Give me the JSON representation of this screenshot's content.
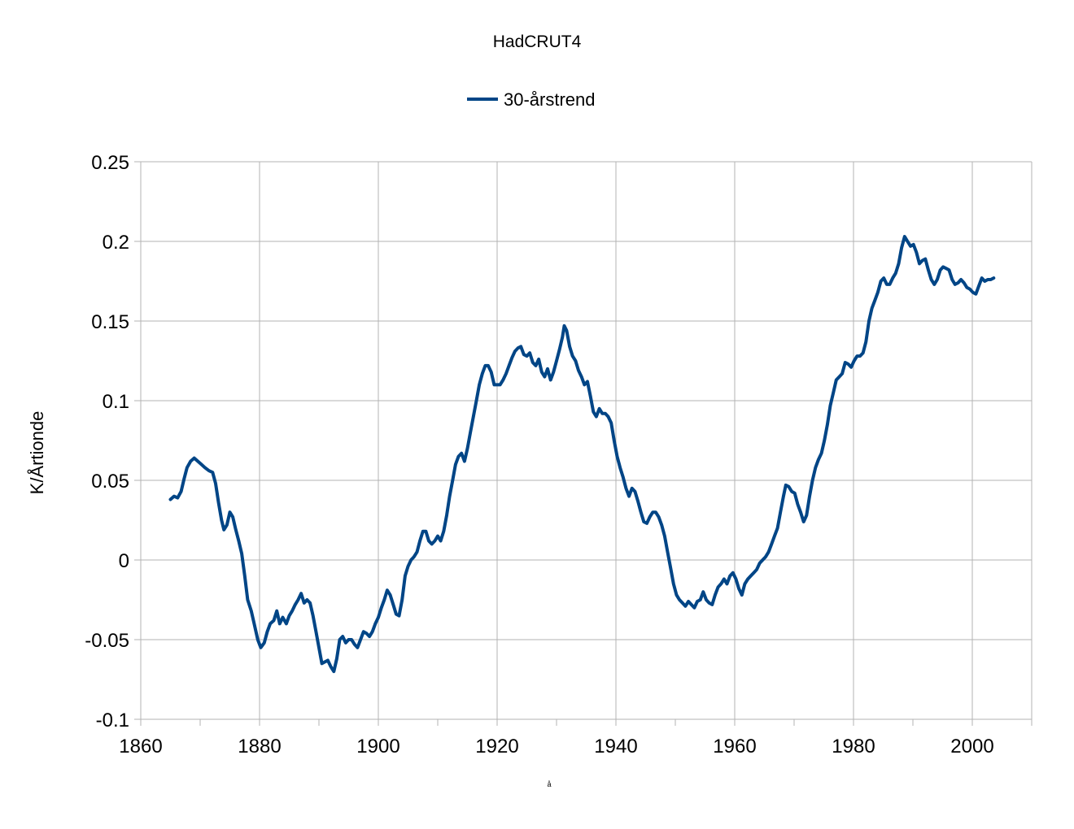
{
  "chart_data": {
    "type": "line",
    "title": "HadCRUT4",
    "xlabel": "å",
    "ylabel": "K/Årtionde",
    "xlim": [
      1860,
      2010
    ],
    "ylim": [
      -0.1,
      0.25
    ],
    "x_ticks": [
      1860,
      1880,
      1900,
      1920,
      1940,
      1960,
      1980,
      2000
    ],
    "y_ticks": [
      -0.1,
      -0.05,
      0,
      0.05,
      0.1,
      0.15,
      0.2,
      0.25
    ],
    "y_tick_labels": [
      "-0.1",
      "-0.05",
      "0",
      "0.05",
      "0.1",
      "0.15",
      "0.2",
      "0.25"
    ],
    "grid": true,
    "legend_position": "top-center",
    "series": [
      {
        "name": "30-årstrend",
        "color": "#004586",
        "points": [
          [
            1865.0,
            0.038
          ],
          [
            1865.6,
            0.04
          ],
          [
            1866.2,
            0.039
          ],
          [
            1866.8,
            0.043
          ],
          [
            1867.3,
            0.051
          ],
          [
            1867.8,
            0.058
          ],
          [
            1868.4,
            0.062
          ],
          [
            1869.0,
            0.064
          ],
          [
            1869.6,
            0.062
          ],
          [
            1870.2,
            0.06
          ],
          [
            1870.8,
            0.058
          ],
          [
            1871.5,
            0.056
          ],
          [
            1872.1,
            0.055
          ],
          [
            1872.6,
            0.048
          ],
          [
            1873.1,
            0.036
          ],
          [
            1873.6,
            0.025
          ],
          [
            1874.0,
            0.019
          ],
          [
            1874.5,
            0.022
          ],
          [
            1875.0,
            0.03
          ],
          [
            1875.5,
            0.027
          ],
          [
            1876.0,
            0.019
          ],
          [
            1876.5,
            0.012
          ],
          [
            1877.0,
            0.004
          ],
          [
            1877.5,
            -0.01
          ],
          [
            1878.0,
            -0.025
          ],
          [
            1878.6,
            -0.032
          ],
          [
            1879.1,
            -0.04
          ],
          [
            1879.7,
            -0.05
          ],
          [
            1880.2,
            -0.055
          ],
          [
            1880.8,
            -0.052
          ],
          [
            1881.3,
            -0.045
          ],
          [
            1881.8,
            -0.04
          ],
          [
            1882.4,
            -0.038
          ],
          [
            1882.9,
            -0.032
          ],
          [
            1883.4,
            -0.04
          ],
          [
            1883.9,
            -0.036
          ],
          [
            1884.5,
            -0.04
          ],
          [
            1885.0,
            -0.035
          ],
          [
            1885.5,
            -0.032
          ],
          [
            1886.0,
            -0.028
          ],
          [
            1886.5,
            -0.025
          ],
          [
            1887.0,
            -0.021
          ],
          [
            1887.5,
            -0.027
          ],
          [
            1888.0,
            -0.025
          ],
          [
            1888.5,
            -0.027
          ],
          [
            1889.0,
            -0.035
          ],
          [
            1889.5,
            -0.045
          ],
          [
            1890.0,
            -0.055
          ],
          [
            1890.5,
            -0.065
          ],
          [
            1891.0,
            -0.064
          ],
          [
            1891.5,
            -0.063
          ],
          [
            1892.0,
            -0.067
          ],
          [
            1892.5,
            -0.07
          ],
          [
            1893.0,
            -0.062
          ],
          [
            1893.5,
            -0.05
          ],
          [
            1894.0,
            -0.048
          ],
          [
            1894.5,
            -0.052
          ],
          [
            1895.0,
            -0.05
          ],
          [
            1895.5,
            -0.05
          ],
          [
            1896.0,
            -0.053
          ],
          [
            1896.5,
            -0.055
          ],
          [
            1897.0,
            -0.05
          ],
          [
            1897.5,
            -0.045
          ],
          [
            1898.0,
            -0.046
          ],
          [
            1898.5,
            -0.048
          ],
          [
            1899.0,
            -0.045
          ],
          [
            1899.5,
            -0.04
          ],
          [
            1900.0,
            -0.036
          ],
          [
            1900.5,
            -0.03
          ],
          [
            1901.0,
            -0.025
          ],
          [
            1901.5,
            -0.019
          ],
          [
            1902.0,
            -0.022
          ],
          [
            1902.5,
            -0.028
          ],
          [
            1903.0,
            -0.034
          ],
          [
            1903.5,
            -0.035
          ],
          [
            1904.0,
            -0.025
          ],
          [
            1904.5,
            -0.01
          ],
          [
            1905.0,
            -0.004
          ],
          [
            1905.5,
            0.0
          ],
          [
            1906.0,
            0.002
          ],
          [
            1906.5,
            0.005
          ],
          [
            1907.0,
            0.012
          ],
          [
            1907.5,
            0.018
          ],
          [
            1908.0,
            0.018
          ],
          [
            1908.5,
            0.012
          ],
          [
            1909.0,
            0.01
          ],
          [
            1909.5,
            0.012
          ],
          [
            1910.0,
            0.015
          ],
          [
            1910.5,
            0.012
          ],
          [
            1911.0,
            0.018
          ],
          [
            1911.5,
            0.028
          ],
          [
            1912.0,
            0.04
          ],
          [
            1912.5,
            0.05
          ],
          [
            1913.0,
            0.06
          ],
          [
            1913.5,
            0.065
          ],
          [
            1914.0,
            0.067
          ],
          [
            1914.5,
            0.062
          ],
          [
            1915.0,
            0.07
          ],
          [
            1915.5,
            0.08
          ],
          [
            1916.0,
            0.09
          ],
          [
            1916.5,
            0.1
          ],
          [
            1917.0,
            0.11
          ],
          [
            1917.5,
            0.117
          ],
          [
            1918.0,
            0.122
          ],
          [
            1918.5,
            0.122
          ],
          [
            1919.0,
            0.118
          ],
          [
            1919.5,
            0.11
          ],
          [
            1920.0,
            0.11
          ],
          [
            1920.5,
            0.11
          ],
          [
            1921.0,
            0.113
          ],
          [
            1921.5,
            0.117
          ],
          [
            1922.0,
            0.122
          ],
          [
            1922.5,
            0.127
          ],
          [
            1923.0,
            0.131
          ],
          [
            1923.5,
            0.133
          ],
          [
            1924.0,
            0.134
          ],
          [
            1924.5,
            0.129
          ],
          [
            1925.0,
            0.128
          ],
          [
            1925.5,
            0.13
          ],
          [
            1926.0,
            0.124
          ],
          [
            1926.5,
            0.122
          ],
          [
            1927.0,
            0.126
          ],
          [
            1927.5,
            0.118
          ],
          [
            1928.0,
            0.115
          ],
          [
            1928.5,
            0.12
          ],
          [
            1929.0,
            0.113
          ],
          [
            1929.5,
            0.118
          ],
          [
            1930.0,
            0.125
          ],
          [
            1930.5,
            0.132
          ],
          [
            1931.0,
            0.14
          ],
          [
            1931.3,
            0.147
          ],
          [
            1931.7,
            0.144
          ],
          [
            1932.2,
            0.134
          ],
          [
            1932.7,
            0.128
          ],
          [
            1933.2,
            0.125
          ],
          [
            1933.7,
            0.119
          ],
          [
            1934.2,
            0.115
          ],
          [
            1934.7,
            0.11
          ],
          [
            1935.2,
            0.112
          ],
          [
            1935.7,
            0.103
          ],
          [
            1936.2,
            0.093
          ],
          [
            1936.7,
            0.09
          ],
          [
            1937.2,
            0.095
          ],
          [
            1937.7,
            0.092
          ],
          [
            1938.2,
            0.092
          ],
          [
            1938.7,
            0.09
          ],
          [
            1939.2,
            0.086
          ],
          [
            1939.7,
            0.075
          ],
          [
            1940.2,
            0.065
          ],
          [
            1940.7,
            0.058
          ],
          [
            1941.2,
            0.052
          ],
          [
            1941.7,
            0.045
          ],
          [
            1942.2,
            0.04
          ],
          [
            1942.7,
            0.045
          ],
          [
            1943.2,
            0.043
          ],
          [
            1943.7,
            0.037
          ],
          [
            1944.2,
            0.03
          ],
          [
            1944.7,
            0.024
          ],
          [
            1945.2,
            0.023
          ],
          [
            1945.7,
            0.027
          ],
          [
            1946.2,
            0.03
          ],
          [
            1946.7,
            0.03
          ],
          [
            1947.2,
            0.027
          ],
          [
            1947.7,
            0.022
          ],
          [
            1948.2,
            0.015
          ],
          [
            1948.7,
            0.005
          ],
          [
            1949.2,
            -0.005
          ],
          [
            1949.7,
            -0.015
          ],
          [
            1950.2,
            -0.022
          ],
          [
            1950.7,
            -0.025
          ],
          [
            1951.2,
            -0.027
          ],
          [
            1951.7,
            -0.029
          ],
          [
            1952.2,
            -0.026
          ],
          [
            1952.7,
            -0.028
          ],
          [
            1953.2,
            -0.03
          ],
          [
            1953.7,
            -0.026
          ],
          [
            1954.2,
            -0.025
          ],
          [
            1954.7,
            -0.02
          ],
          [
            1955.2,
            -0.025
          ],
          [
            1955.7,
            -0.027
          ],
          [
            1956.2,
            -0.028
          ],
          [
            1956.7,
            -0.022
          ],
          [
            1957.2,
            -0.017
          ],
          [
            1957.7,
            -0.015
          ],
          [
            1958.2,
            -0.012
          ],
          [
            1958.7,
            -0.015
          ],
          [
            1959.2,
            -0.01
          ],
          [
            1959.7,
            -0.008
          ],
          [
            1960.2,
            -0.012
          ],
          [
            1960.7,
            -0.018
          ],
          [
            1961.2,
            -0.022
          ],
          [
            1961.7,
            -0.015
          ],
          [
            1962.2,
            -0.012
          ],
          [
            1962.7,
            -0.01
          ],
          [
            1963.2,
            -0.008
          ],
          [
            1963.7,
            -0.006
          ],
          [
            1964.2,
            -0.002
          ],
          [
            1964.7,
            0.0
          ],
          [
            1965.2,
            0.002
          ],
          [
            1965.7,
            0.005
          ],
          [
            1966.2,
            0.01
          ],
          [
            1966.7,
            0.015
          ],
          [
            1967.2,
            0.02
          ],
          [
            1967.7,
            0.03
          ],
          [
            1968.2,
            0.04
          ],
          [
            1968.6,
            0.047
          ],
          [
            1969.1,
            0.046
          ],
          [
            1969.6,
            0.043
          ],
          [
            1970.1,
            0.042
          ],
          [
            1970.6,
            0.035
          ],
          [
            1971.1,
            0.03
          ],
          [
            1971.6,
            0.024
          ],
          [
            1972.1,
            0.028
          ],
          [
            1972.6,
            0.04
          ],
          [
            1973.1,
            0.05
          ],
          [
            1973.6,
            0.058
          ],
          [
            1974.1,
            0.063
          ],
          [
            1974.6,
            0.067
          ],
          [
            1975.1,
            0.075
          ],
          [
            1975.6,
            0.085
          ],
          [
            1976.1,
            0.097
          ],
          [
            1976.6,
            0.105
          ],
          [
            1977.1,
            0.113
          ],
          [
            1977.6,
            0.115
          ],
          [
            1978.1,
            0.117
          ],
          [
            1978.6,
            0.124
          ],
          [
            1979.1,
            0.123
          ],
          [
            1979.6,
            0.121
          ],
          [
            1980.1,
            0.125
          ],
          [
            1980.6,
            0.128
          ],
          [
            1981.1,
            0.128
          ],
          [
            1981.6,
            0.13
          ],
          [
            1982.1,
            0.137
          ],
          [
            1982.6,
            0.15
          ],
          [
            1983.1,
            0.158
          ],
          [
            1983.6,
            0.163
          ],
          [
            1984.1,
            0.168
          ],
          [
            1984.6,
            0.175
          ],
          [
            1985.1,
            0.177
          ],
          [
            1985.6,
            0.173
          ],
          [
            1986.1,
            0.173
          ],
          [
            1986.6,
            0.177
          ],
          [
            1987.1,
            0.18
          ],
          [
            1987.6,
            0.186
          ],
          [
            1988.1,
            0.196
          ],
          [
            1988.6,
            0.203
          ],
          [
            1989.1,
            0.2
          ],
          [
            1989.6,
            0.197
          ],
          [
            1990.1,
            0.198
          ],
          [
            1990.6,
            0.193
          ],
          [
            1991.1,
            0.186
          ],
          [
            1991.6,
            0.188
          ],
          [
            1992.1,
            0.189
          ],
          [
            1992.6,
            0.182
          ],
          [
            1993.1,
            0.176
          ],
          [
            1993.6,
            0.173
          ],
          [
            1994.1,
            0.176
          ],
          [
            1994.6,
            0.182
          ],
          [
            1995.1,
            0.184
          ],
          [
            1995.6,
            0.183
          ],
          [
            1996.1,
            0.182
          ],
          [
            1996.6,
            0.176
          ],
          [
            1997.1,
            0.173
          ],
          [
            1997.6,
            0.174
          ],
          [
            1998.1,
            0.176
          ],
          [
            1998.6,
            0.174
          ],
          [
            1999.1,
            0.171
          ],
          [
            1999.6,
            0.17
          ],
          [
            2000.1,
            0.168
          ],
          [
            2000.6,
            0.167
          ],
          [
            2001.1,
            0.172
          ],
          [
            2001.6,
            0.177
          ],
          [
            2002.1,
            0.175
          ],
          [
            2002.6,
            0.176
          ],
          [
            2003.1,
            0.176
          ],
          [
            2003.6,
            0.177
          ]
        ]
      }
    ]
  }
}
